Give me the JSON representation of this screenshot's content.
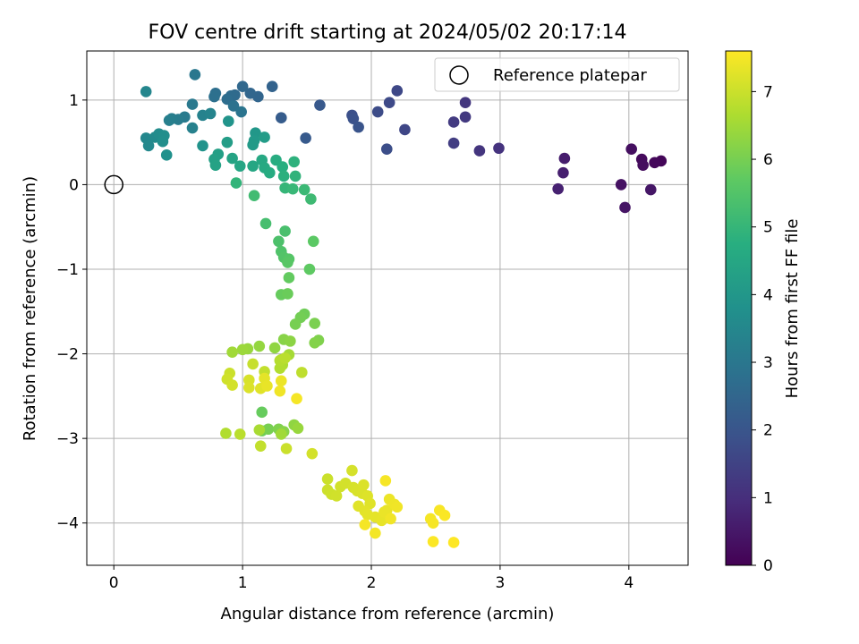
{
  "chart_data": {
    "type": "scatter",
    "title": "FOV centre drift starting at 2024/05/02 20:17:14",
    "xlabel": "Angular distance from reference (arcmin)",
    "ylabel": "Rotation from reference (arcmin)",
    "xlim": [
      -0.21,
      4.46
    ],
    "ylim": [
      -4.5,
      1.58
    ],
    "xticks": [
      "0",
      "1",
      "2",
      "3",
      "4"
    ],
    "yticks": [
      "−4",
      "−3",
      "−2",
      "−1",
      "0",
      "1"
    ],
    "grid": true,
    "legend": {
      "placement": "upper-right",
      "entries": [
        "Reference platepar"
      ]
    },
    "reference_point": {
      "x": 0,
      "y": 0
    },
    "colorbar": {
      "label": "Hours from first FF file",
      "range": [
        0,
        7.6
      ],
      "ticks": [
        "0",
        "1",
        "2",
        "3",
        "4",
        "5",
        "6",
        "7"
      ],
      "colormap": "viridis"
    },
    "points": [
      [
        4.25,
        0.28,
        0.1
      ],
      [
        4.2,
        0.26,
        0.15
      ],
      [
        4.1,
        0.3,
        0.2
      ],
      [
        4.11,
        0.23,
        0.25
      ],
      [
        4.02,
        0.42,
        0.3
      ],
      [
        3.94,
        0.0,
        0.35
      ],
      [
        3.97,
        -0.27,
        0.4
      ],
      [
        4.17,
        -0.06,
        0.45
      ],
      [
        3.5,
        0.31,
        0.6
      ],
      [
        3.49,
        0.14,
        0.65
      ],
      [
        3.45,
        -0.05,
        0.7
      ],
      [
        2.99,
        0.43,
        1.1
      ],
      [
        2.84,
        0.4,
        1.15
      ],
      [
        2.73,
        0.97,
        1.2
      ],
      [
        2.73,
        0.8,
        1.25
      ],
      [
        2.64,
        0.74,
        1.3
      ],
      [
        2.64,
        0.49,
        1.35
      ],
      [
        2.26,
        0.65,
        1.6
      ],
      [
        2.2,
        1.11,
        1.65
      ],
      [
        2.14,
        0.97,
        1.7
      ],
      [
        2.05,
        0.86,
        1.75
      ],
      [
        2.12,
        0.42,
        1.8
      ],
      [
        1.85,
        0.82,
        1.85
      ],
      [
        1.86,
        0.78,
        1.9
      ],
      [
        1.9,
        0.68,
        1.95
      ],
      [
        1.6,
        0.94,
        2.1
      ],
      [
        1.49,
        0.55,
        2.15
      ],
      [
        1.3,
        0.79,
        2.2
      ],
      [
        1.23,
        1.16,
        2.4
      ],
      [
        1.12,
        1.04,
        2.45
      ],
      [
        1.06,
        1.08,
        2.5
      ],
      [
        1.0,
        1.16,
        2.55
      ],
      [
        0.94,
        1.06,
        2.6
      ],
      [
        0.91,
        1.05,
        2.65
      ],
      [
        0.88,
        1.01,
        2.7
      ],
      [
        0.79,
        1.08,
        2.75
      ],
      [
        0.78,
        1.04,
        2.8
      ],
      [
        0.93,
        0.93,
        2.85
      ],
      [
        0.99,
        0.86,
        2.9
      ],
      [
        0.63,
        1.3,
        3.0
      ],
      [
        0.61,
        0.95,
        3.05
      ],
      [
        0.55,
        0.8,
        3.1
      ],
      [
        0.5,
        0.77,
        3.15
      ],
      [
        0.45,
        0.78,
        3.2
      ],
      [
        0.43,
        0.76,
        3.25
      ],
      [
        0.61,
        0.67,
        3.3
      ],
      [
        0.69,
        0.82,
        3.35
      ],
      [
        0.75,
        0.84,
        3.4
      ],
      [
        0.25,
        1.1,
        3.45
      ],
      [
        0.25,
        0.55,
        3.5
      ],
      [
        0.27,
        0.46,
        3.55
      ],
      [
        0.32,
        0.56,
        3.6
      ],
      [
        0.35,
        0.6,
        3.65
      ],
      [
        0.39,
        0.58,
        3.7
      ],
      [
        0.38,
        0.51,
        3.75
      ],
      [
        0.41,
        0.35,
        3.8
      ],
      [
        0.69,
        0.46,
        3.85
      ],
      [
        0.89,
        0.75,
        3.9
      ],
      [
        1.1,
        0.61,
        4.0
      ],
      [
        1.09,
        0.52,
        4.05
      ],
      [
        1.08,
        0.47,
        4.1
      ],
      [
        1.17,
        0.56,
        4.15
      ],
      [
        0.88,
        0.5,
        4.2
      ],
      [
        0.81,
        0.36,
        4.25
      ],
      [
        0.78,
        0.3,
        4.3
      ],
      [
        0.79,
        0.23,
        4.35
      ],
      [
        0.92,
        0.31,
        4.4
      ],
      [
        0.98,
        0.22,
        4.45
      ],
      [
        1.08,
        0.22,
        4.5
      ],
      [
        1.15,
        0.29,
        4.55
      ],
      [
        1.17,
        0.2,
        4.6
      ],
      [
        1.21,
        0.14,
        4.65
      ],
      [
        1.26,
        0.29,
        4.7
      ],
      [
        1.31,
        0.21,
        4.75
      ],
      [
        1.32,
        0.1,
        4.8
      ],
      [
        1.4,
        0.27,
        4.85
      ],
      [
        1.41,
        0.1,
        4.9
      ],
      [
        0.95,
        0.02,
        4.95
      ],
      [
        1.33,
        -0.04,
        5.0
      ],
      [
        1.39,
        -0.05,
        5.05
      ],
      [
        1.48,
        -0.06,
        5.1
      ],
      [
        1.53,
        -0.17,
        5.15
      ],
      [
        1.09,
        -0.13,
        5.2
      ],
      [
        1.18,
        -0.46,
        5.3
      ],
      [
        1.33,
        -0.55,
        5.35
      ],
      [
        1.28,
        -0.67,
        5.4
      ],
      [
        1.3,
        -0.79,
        5.45
      ],
      [
        1.32,
        -0.86,
        5.5
      ],
      [
        1.36,
        -0.88,
        5.55
      ],
      [
        1.35,
        -0.92,
        5.6
      ],
      [
        1.55,
        -0.67,
        5.65
      ],
      [
        1.52,
        -1.0,
        5.7
      ],
      [
        1.36,
        -1.1,
        5.75
      ],
      [
        1.3,
        -1.3,
        5.8
      ],
      [
        1.35,
        -1.29,
        5.85
      ],
      [
        1.48,
        -1.53,
        5.9
      ],
      [
        1.45,
        -1.57,
        5.95
      ],
      [
        1.41,
        -1.65,
        6.0
      ],
      [
        1.56,
        -1.64,
        6.05
      ],
      [
        1.59,
        -1.84,
        6.1
      ],
      [
        1.56,
        -1.87,
        6.15
      ],
      [
        1.32,
        -1.83,
        6.2
      ],
      [
        1.37,
        -1.85,
        6.25
      ],
      [
        1.25,
        -1.93,
        6.3
      ],
      [
        1.13,
        -1.91,
        6.35
      ],
      [
        1.04,
        -1.94,
        6.4
      ],
      [
        1.0,
        -1.95,
        6.45
      ],
      [
        0.92,
        -1.98,
        6.5
      ],
      [
        1.36,
        -2.01,
        6.55
      ],
      [
        1.3,
        -2.07,
        6.6
      ],
      [
        1.31,
        -2.13,
        6.65
      ],
      [
        1.29,
        -2.17,
        6.7
      ],
      [
        1.29,
        -2.08,
        6.75
      ],
      [
        1.33,
        -2.05,
        6.8
      ],
      [
        1.46,
        -2.22,
        6.85
      ],
      [
        1.17,
        -2.21,
        6.9
      ],
      [
        1.08,
        -2.12,
        6.95
      ],
      [
        0.9,
        -2.23,
        7.0
      ],
      [
        0.88,
        -2.3,
        7.05
      ],
      [
        0.92,
        -2.37,
        7.1
      ],
      [
        1.05,
        -2.31,
        7.15
      ],
      [
        1.05,
        -2.4,
        7.2
      ],
      [
        1.14,
        -2.41,
        7.25
      ],
      [
        1.17,
        -2.29,
        7.3
      ],
      [
        1.19,
        -2.38,
        7.35
      ],
      [
        1.3,
        -2.32,
        7.4
      ],
      [
        1.29,
        -2.44,
        7.45
      ],
      [
        1.42,
        -2.53,
        7.5
      ],
      [
        1.15,
        -2.69,
        5.8
      ],
      [
        1.15,
        -2.91,
        5.9
      ],
      [
        1.2,
        -2.89,
        6.0
      ],
      [
        1.28,
        -2.89,
        6.1
      ],
      [
        1.32,
        -2.92,
        6.2
      ],
      [
        1.4,
        -2.84,
        6.3
      ],
      [
        1.43,
        -2.88,
        6.4
      ],
      [
        1.3,
        -2.95,
        6.5
      ],
      [
        1.13,
        -2.9,
        6.6
      ],
      [
        0.87,
        -2.94,
        6.7
      ],
      [
        0.98,
        -2.95,
        6.8
      ],
      [
        1.14,
        -3.09,
        6.9
      ],
      [
        1.34,
        -3.12,
        7.0
      ],
      [
        1.54,
        -3.18,
        7.1
      ],
      [
        1.66,
        -3.48,
        7.0
      ],
      [
        1.66,
        -3.61,
        7.02
      ],
      [
        1.69,
        -3.66,
        7.04
      ],
      [
        1.73,
        -3.68,
        7.06
      ],
      [
        1.76,
        -3.57,
        7.08
      ],
      [
        1.8,
        -3.53,
        7.1
      ],
      [
        1.85,
        -3.38,
        7.12
      ],
      [
        1.86,
        -3.58,
        7.14
      ],
      [
        1.89,
        -3.62,
        7.16
      ],
      [
        1.93,
        -3.65,
        7.18
      ],
      [
        1.94,
        -3.55,
        7.2
      ],
      [
        1.97,
        -3.68,
        7.22
      ],
      [
        1.99,
        -3.77,
        7.24
      ],
      [
        1.9,
        -3.8,
        7.26
      ],
      [
        1.95,
        -3.86,
        7.28
      ],
      [
        1.97,
        -3.9,
        7.3
      ],
      [
        2.03,
        -3.93,
        7.32
      ],
      [
        2.08,
        -3.97,
        7.34
      ],
      [
        2.12,
        -3.85,
        7.36
      ],
      [
        2.1,
        -3.87,
        7.38
      ],
      [
        2.14,
        -3.72,
        7.4
      ],
      [
        2.18,
        -3.78,
        7.42
      ],
      [
        2.2,
        -3.81,
        7.44
      ],
      [
        2.15,
        -3.95,
        7.46
      ],
      [
        2.03,
        -4.12,
        7.48
      ],
      [
        1.95,
        -4.02,
        7.5
      ],
      [
        2.11,
        -3.5,
        7.52
      ],
      [
        2.46,
        -3.95,
        7.5
      ],
      [
        2.48,
        -4.0,
        7.52
      ],
      [
        2.53,
        -3.85,
        7.54
      ],
      [
        2.57,
        -3.91,
        7.56
      ],
      [
        2.48,
        -4.22,
        7.58
      ],
      [
        2.64,
        -4.23,
        7.6
      ]
    ]
  }
}
